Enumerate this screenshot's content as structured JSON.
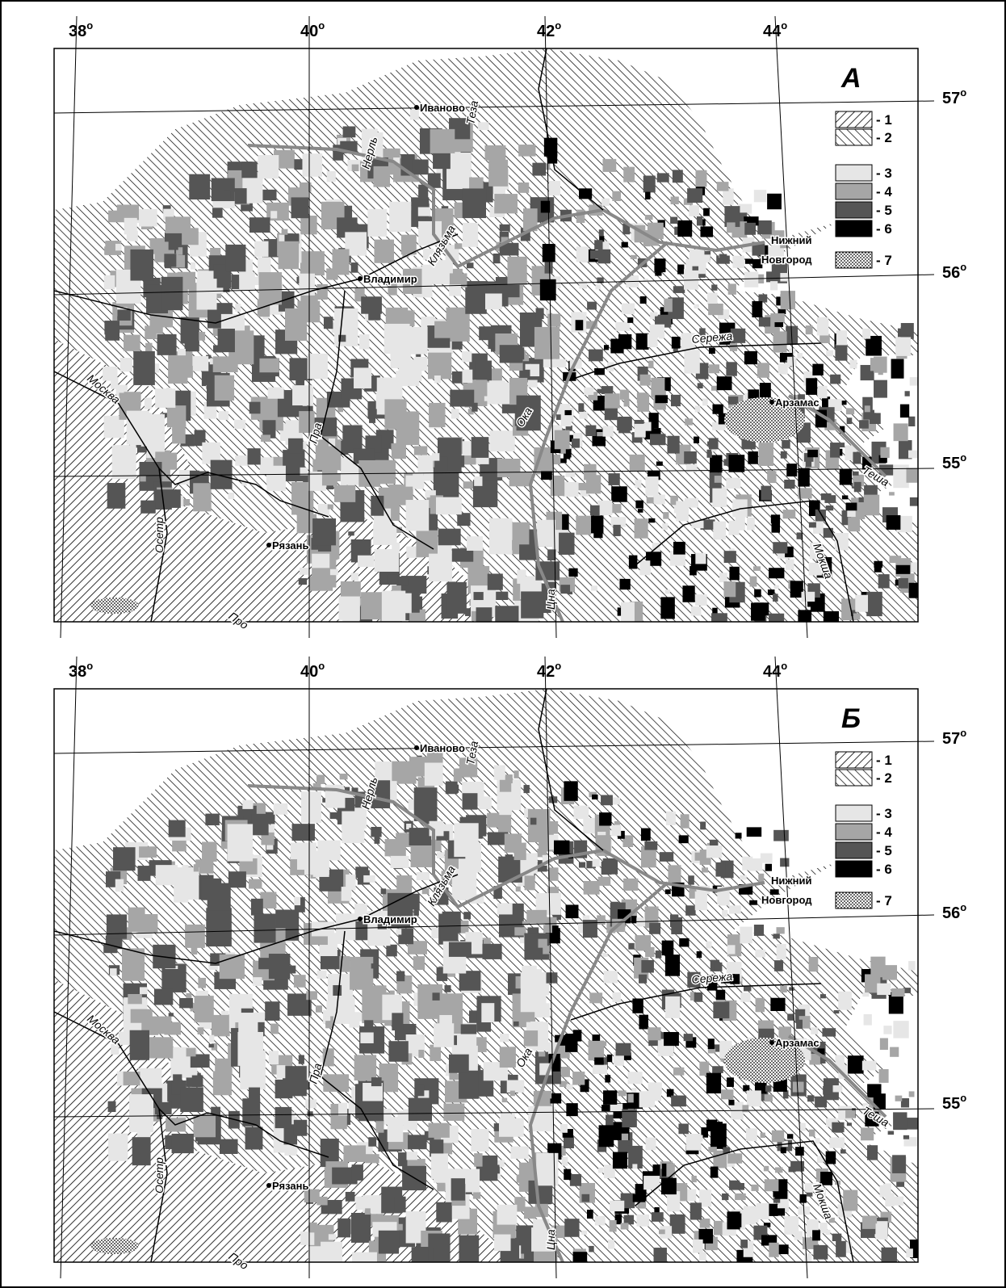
{
  "panels": [
    {
      "letter": "А",
      "lon_labels": [
        {
          "text": "38",
          "sup": "o"
        },
        {
          "text": "40",
          "sup": "o"
        },
        {
          "text": "42",
          "sup": "o"
        },
        {
          "text": "44",
          "sup": "o"
        }
      ],
      "lat_labels": [
        {
          "text": "57",
          "sup": "o"
        },
        {
          "text": "56",
          "sup": "o"
        },
        {
          "text": "55",
          "sup": "o"
        }
      ],
      "legend": [
        "- 1",
        "- 2",
        "- 3",
        "- 4",
        "- 5",
        "- 6",
        "- 7"
      ],
      "cities": [
        "Иваново",
        "Владимир",
        "Рязань",
        "Арзамас",
        "Нижний",
        "Новгород"
      ],
      "rivers": [
        "Теза",
        "Нерль",
        "Клязьма",
        "Москва",
        "Ока",
        "Пра",
        "Осетр",
        "Сережа",
        "Теша",
        "Мокша",
        "Цна",
        "Про"
      ]
    },
    {
      "letter": "Б",
      "lon_labels": [
        {
          "text": "38",
          "sup": "o"
        },
        {
          "text": "40",
          "sup": "o"
        },
        {
          "text": "42",
          "sup": "o"
        },
        {
          "text": "44",
          "sup": "o"
        }
      ],
      "lat_labels": [
        {
          "text": "57",
          "sup": "o"
        },
        {
          "text": "56",
          "sup": "o"
        },
        {
          "text": "55",
          "sup": "o"
        }
      ],
      "legend": [
        "- 1",
        "- 2",
        "- 3",
        "- 4",
        "- 5",
        "- 6",
        "- 7"
      ],
      "cities": [
        "Иваново",
        "Владимир",
        "Рязань",
        "Арзамас",
        "Нижний",
        "Новгород"
      ],
      "rivers": [
        "Теза",
        "Нерль",
        "Клязьма",
        "Москва",
        "Ока",
        "Пра",
        "Осетр",
        "Сережа",
        "Теша",
        "Мокша",
        "Цна",
        "Про"
      ]
    }
  ]
}
